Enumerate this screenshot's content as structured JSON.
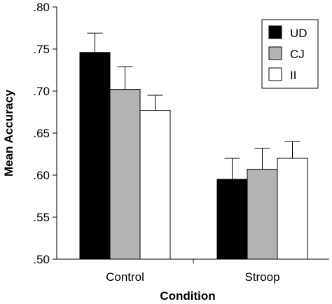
{
  "chart_data": {
    "type": "bar",
    "xlabel": "Condition",
    "ylabel": "Mean Accuracy",
    "ylim": [
      0.5,
      0.8
    ],
    "yticks": [
      ".50",
      ".55",
      ".60",
      ".65",
      ".70",
      ".75",
      ".80"
    ],
    "ytick_values": [
      0.5,
      0.55,
      0.6,
      0.65,
      0.7,
      0.75,
      0.8
    ],
    "categories": [
      "Control",
      "Stroop"
    ],
    "series": [
      {
        "name": "UD",
        "color": "#000000",
        "values": [
          0.746,
          0.595
        ],
        "errors": [
          0.023,
          0.025
        ]
      },
      {
        "name": "CJ",
        "color": "#b3b3b3",
        "values": [
          0.702,
          0.607
        ],
        "errors": [
          0.027,
          0.025
        ]
      },
      {
        "name": "II",
        "color": "#ffffff",
        "values": [
          0.677,
          0.62
        ],
        "errors": [
          0.018,
          0.02
        ]
      }
    ],
    "legend_position": "top-right",
    "grid": false
  }
}
